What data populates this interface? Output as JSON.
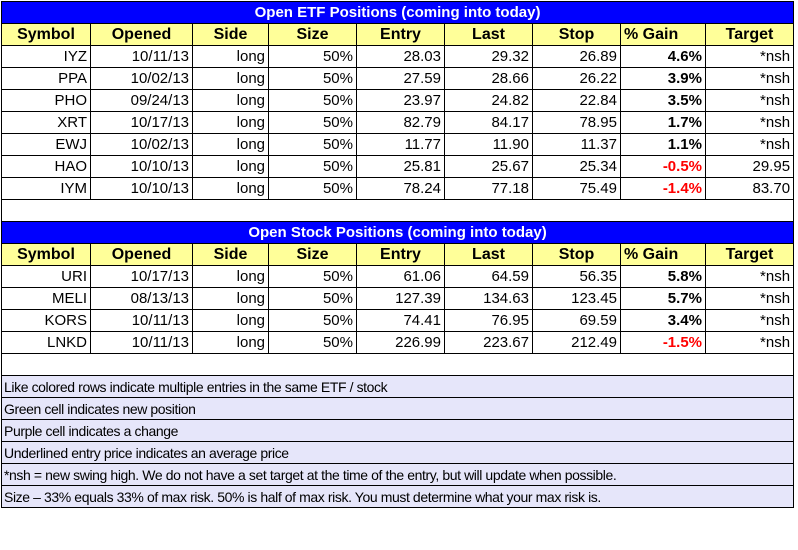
{
  "colors": {
    "title_bg": "#0000ff",
    "header_bg": "#ffff99",
    "note_bg": "#e6e6fa",
    "negative": "#ff0000"
  },
  "columns": [
    "Symbol",
    "Opened",
    "Side",
    "Size",
    "Entry",
    "Last",
    "Stop",
    "% Gain",
    "Target"
  ],
  "etf": {
    "title": "Open ETF Positions (coming into today)",
    "rows": [
      [
        "IYZ",
        "10/11/13",
        "long",
        "50%",
        "28.03",
        "29.32",
        "26.89",
        "4.6%",
        "*nsh"
      ],
      [
        "PPA",
        "10/02/13",
        "long",
        "50%",
        "27.59",
        "28.66",
        "26.22",
        "3.9%",
        "*nsh"
      ],
      [
        "PHO",
        "09/24/13",
        "long",
        "50%",
        "23.97",
        "24.82",
        "22.84",
        "3.5%",
        "*nsh"
      ],
      [
        "XRT",
        "10/17/13",
        "long",
        "50%",
        "82.79",
        "84.17",
        "78.95",
        "1.7%",
        "*nsh"
      ],
      [
        "EWJ",
        "10/02/13",
        "long",
        "50%",
        "11.77",
        "11.90",
        "11.37",
        "1.1%",
        "*nsh"
      ],
      [
        "HAO",
        "10/10/13",
        "long",
        "50%",
        "25.81",
        "25.67",
        "25.34",
        "-0.5%",
        "29.95"
      ],
      [
        "IYM",
        "10/10/13",
        "long",
        "50%",
        "78.24",
        "77.18",
        "75.49",
        "-1.4%",
        "83.70"
      ]
    ]
  },
  "stock": {
    "title": "Open Stock Positions (coming into today)",
    "rows": [
      [
        "URI",
        "10/17/13",
        "long",
        "50%",
        "61.06",
        "64.59",
        "56.35",
        "5.8%",
        "*nsh"
      ],
      [
        "MELI",
        "08/13/13",
        "long",
        "50%",
        "127.39",
        "134.63",
        "123.45",
        "5.7%",
        "*nsh"
      ],
      [
        "KORS",
        "10/11/13",
        "long",
        "50%",
        "74.41",
        "76.95",
        "69.59",
        "3.4%",
        "*nsh"
      ],
      [
        "LNKD",
        "10/11/13",
        "long",
        "50%",
        "226.99",
        "223.67",
        "212.49",
        "-1.5%",
        "*nsh"
      ]
    ]
  },
  "notes": [
    "Like colored rows indicate multiple entries in the same ETF / stock",
    "Green cell indicates new position",
    "Purple cell indicates a change",
    "Underlined entry price indicates an average price",
    "*nsh = new swing high.  We do not have a set target at the time of the entry, but will update when possible.",
    "Size – 33% equals 33% of max risk.  50% is half of max risk. You must determine what your max risk is."
  ]
}
